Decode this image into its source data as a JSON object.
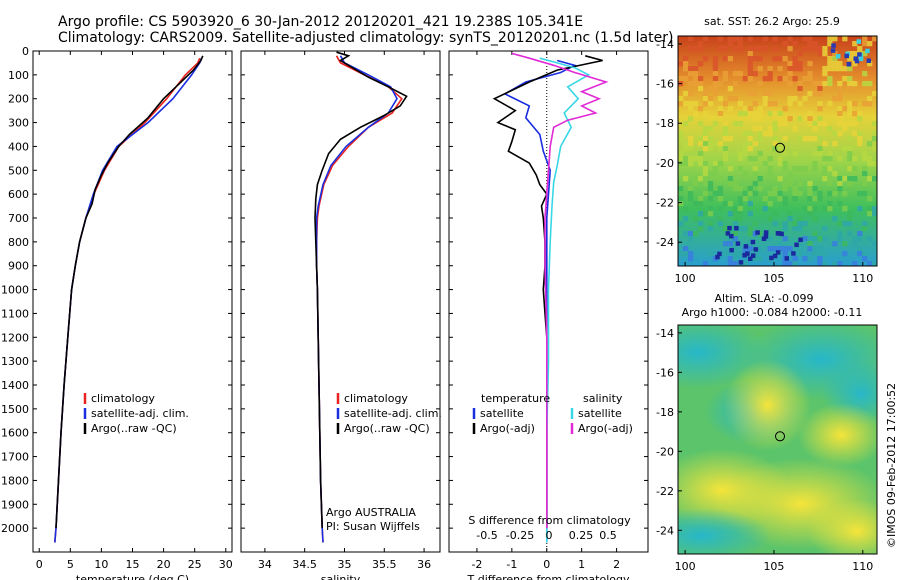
{
  "header": {
    "line1": "Argo profile: CS 5903920_6 30-Jan-2012 20120201_421 19.238S 105.341E",
    "line2": "Climatology: CARS2009. Satellite-adjusted climatology: synTS_20120201.nc (1.5d later)"
  },
  "credit": "©IMOS 09-Feb-2012 17:00:52",
  "colors": {
    "climatology": "#e8231f",
    "satellite": "#1a2ee0",
    "argo": "#000000",
    "sal_satellite": "#38d7e6",
    "sal_argo": "#e02ad6",
    "marker": "#000000"
  },
  "chart_data": [
    {
      "type": "line",
      "xlabel": "temperature (deg C)",
      "ylim": [
        2100,
        0
      ],
      "xlim": [
        -1,
        31
      ],
      "xticks": [
        0,
        5,
        10,
        15,
        20,
        25,
        30
      ],
      "yticks": [
        0,
        100,
        200,
        300,
        400,
        500,
        600,
        700,
        800,
        900,
        1000,
        1100,
        1200,
        1300,
        1400,
        1500,
        1600,
        1700,
        1800,
        1900,
        2000
      ],
      "legend": [
        "climatology",
        "satellite-adj. clim.",
        "Argo(..raw -QC)"
      ],
      "series": [
        {
          "name": "climatology",
          "color_key": "climatology",
          "points": [
            [
              25.8,
              30
            ],
            [
              25.5,
              50
            ],
            [
              23.5,
              100
            ],
            [
              20.5,
              200
            ],
            [
              17,
              300
            ],
            [
              12.8,
              400
            ],
            [
              10.5,
              500
            ],
            [
              8.8,
              600
            ],
            [
              7.5,
              700
            ],
            [
              6.5,
              800
            ],
            [
              5.8,
              900
            ],
            [
              5.2,
              1000
            ],
            [
              4.6,
              1200
            ],
            [
              4.0,
              1400
            ],
            [
              3.5,
              1600
            ],
            [
              3.1,
              1800
            ],
            [
              2.7,
              2000
            ],
            [
              2.5,
              2060
            ]
          ]
        },
        {
          "name": "satellite-adj. clim.",
          "color_key": "satellite",
          "points": [
            [
              26.1,
              30
            ],
            [
              25.8,
              50
            ],
            [
              24.5,
              100
            ],
            [
              21.5,
              200
            ],
            [
              17.5,
              300
            ],
            [
              12.5,
              400
            ],
            [
              10.2,
              500
            ],
            [
              8.7,
              600
            ],
            [
              7.5,
              700
            ],
            [
              6.5,
              800
            ],
            [
              5.8,
              900
            ],
            [
              5.2,
              1000
            ],
            [
              4.6,
              1200
            ],
            [
              4.0,
              1400
            ],
            [
              3.5,
              1600
            ],
            [
              3.1,
              1800
            ],
            [
              2.7,
              2000
            ],
            [
              2.5,
              2060
            ]
          ]
        },
        {
          "name": "Argo(..raw -QC)",
          "color_key": "argo",
          "points": [
            [
              26.3,
              20
            ],
            [
              26,
              40
            ],
            [
              24.8,
              80
            ],
            [
              22,
              150
            ],
            [
              20,
              200
            ],
            [
              17.5,
              280
            ],
            [
              14.5,
              350
            ],
            [
              12.8,
              400
            ],
            [
              11,
              470
            ],
            [
              10,
              520
            ],
            [
              9,
              580
            ],
            [
              8.5,
              640
            ],
            [
              7.5,
              700
            ],
            [
              6.5,
              800
            ],
            [
              5.8,
              900
            ],
            [
              5.2,
              1000
            ],
            [
              4.6,
              1200
            ],
            [
              4.0,
              1400
            ],
            [
              3.5,
              1600
            ],
            [
              3.1,
              1800
            ],
            [
              2.7,
              2000
            ]
          ]
        }
      ]
    },
    {
      "type": "line",
      "xlabel": "salinity",
      "ylim": [
        2100,
        0
      ],
      "xlim": [
        33.7,
        36.2
      ],
      "xticks": [
        34,
        34.5,
        35,
        35.5,
        36
      ],
      "legend": [
        "climatology",
        "satellite-adj. clim.",
        "Argo(..raw -QC)"
      ],
      "annotation": [
        "Argo AUSTRALIA",
        "PI: Susan Wijffels"
      ],
      "series": [
        {
          "name": "climatology",
          "color_key": "climatology",
          "points": [
            [
              34.9,
              20
            ],
            [
              34.95,
              50
            ],
            [
              35.25,
              100
            ],
            [
              35.55,
              150
            ],
            [
              35.72,
              200
            ],
            [
              35.6,
              260
            ],
            [
              35.3,
              320
            ],
            [
              35.05,
              400
            ],
            [
              34.85,
              480
            ],
            [
              34.74,
              560
            ],
            [
              34.68,
              650
            ],
            [
              34.66,
              700
            ],
            [
              34.65,
              800
            ],
            [
              34.65,
              900
            ],
            [
              34.66,
              1000
            ],
            [
              34.67,
              1200
            ],
            [
              34.68,
              1400
            ],
            [
              34.69,
              1600
            ],
            [
              34.7,
              1800
            ],
            [
              34.72,
              2000
            ],
            [
              34.73,
              2060
            ]
          ]
        },
        {
          "name": "satellite-adj. clim.",
          "color_key": "satellite",
          "points": [
            [
              34.95,
              20
            ],
            [
              35.0,
              50
            ],
            [
              35.3,
              100
            ],
            [
              35.58,
              150
            ],
            [
              35.66,
              200
            ],
            [
              35.55,
              260
            ],
            [
              35.3,
              320
            ],
            [
              35.02,
              400
            ],
            [
              34.83,
              480
            ],
            [
              34.73,
              560
            ],
            [
              34.67,
              650
            ],
            [
              34.65,
              700
            ],
            [
              34.65,
              800
            ],
            [
              34.65,
              900
            ],
            [
              34.66,
              1000
            ],
            [
              34.67,
              1200
            ],
            [
              34.68,
              1400
            ],
            [
              34.69,
              1600
            ],
            [
              34.7,
              1800
            ],
            [
              34.72,
              2000
            ],
            [
              34.73,
              2060
            ]
          ]
        },
        {
          "name": "Argo(..raw -QC)",
          "color_key": "argo",
          "points": [
            [
              34.9,
              5
            ],
            [
              35.05,
              20
            ],
            [
              34.95,
              40
            ],
            [
              35.1,
              70
            ],
            [
              35.3,
              110
            ],
            [
              35.55,
              150
            ],
            [
              35.78,
              190
            ],
            [
              35.7,
              230
            ],
            [
              35.5,
              270
            ],
            [
              35.2,
              320
            ],
            [
              34.95,
              370
            ],
            [
              34.8,
              430
            ],
            [
              34.72,
              500
            ],
            [
              34.66,
              560
            ],
            [
              34.64,
              620
            ],
            [
              34.63,
              700
            ],
            [
              34.64,
              800
            ],
            [
              34.65,
              900
            ],
            [
              34.66,
              1000
            ],
            [
              34.67,
              1200
            ],
            [
              34.68,
              1400
            ],
            [
              34.69,
              1600
            ],
            [
              34.7,
              1800
            ],
            [
              34.72,
              2000
            ]
          ]
        }
      ]
    },
    {
      "type": "line",
      "xlabel": "T difference from climatology",
      "ylim": [
        2100,
        0
      ],
      "xlim": [
        -2.8,
        2.9
      ],
      "xticks": [
        -2,
        -1,
        0,
        1,
        2
      ],
      "upper_axis_label": "S difference from climatology",
      "upper_ticks": [
        "-0.5",
        "-0.25",
        "0",
        "0.25",
        "0.5"
      ],
      "legend_groups": [
        {
          "title": "temperature",
          "items": [
            "satellite",
            "Argo(-adj)"
          ]
        },
        {
          "title": "salinity",
          "items": [
            "satellite",
            "Argo(-adj)"
          ]
        }
      ],
      "series": [
        {
          "name": "satellite",
          "group": "temperature",
          "color_key": "satellite",
          "points": [
            [
              0.3,
              40
            ],
            [
              0.8,
              60
            ],
            [
              0.4,
              90
            ],
            [
              -0.6,
              130
            ],
            [
              -1.2,
              180
            ],
            [
              -0.5,
              230
            ],
            [
              -0.6,
              280
            ],
            [
              -0.2,
              350
            ],
            [
              -0.1,
              420
            ],
            [
              0.1,
              500
            ],
            [
              0.05,
              600
            ],
            [
              0,
              700
            ],
            [
              0,
              900
            ],
            [
              0,
              1200
            ],
            [
              0,
              1500
            ],
            [
              0,
              1800
            ],
            [
              0,
              2060
            ]
          ]
        },
        {
          "name": "Argo(-adj)",
          "group": "temperature",
          "color_key": "argo",
          "points": [
            [
              1.1,
              20
            ],
            [
              1.6,
              40
            ],
            [
              0.3,
              80
            ],
            [
              -0.5,
              130
            ],
            [
              -1.5,
              200
            ],
            [
              -0.9,
              250
            ],
            [
              -1.4,
              300
            ],
            [
              -0.9,
              330
            ],
            [
              -1.0,
              380
            ],
            [
              -1.1,
              420
            ],
            [
              -0.5,
              470
            ],
            [
              -0.3,
              520
            ],
            [
              -0.2,
              560
            ],
            [
              0,
              600
            ],
            [
              -0.15,
              650
            ],
            [
              -0.1,
              700
            ],
            [
              -0.05,
              800
            ],
            [
              -0.05,
              900
            ],
            [
              -0.1,
              1000
            ],
            [
              -0.05,
              1100
            ],
            [
              0,
              1200
            ],
            [
              0,
              1400
            ],
            [
              0,
              1600
            ],
            [
              0,
              1800
            ],
            [
              0,
              2000
            ]
          ]
        },
        {
          "name": "satellite",
          "group": "salinity",
          "color_key": "sal_satellite",
          "points": [
            [
              -0.2,
              30
            ],
            [
              0.3,
              50
            ],
            [
              0.8,
              70
            ],
            [
              1.2,
              100
            ],
            [
              0.6,
              150
            ],
            [
              0.9,
              200
            ],
            [
              0.5,
              260
            ],
            [
              0.7,
              320
            ],
            [
              0.4,
              400
            ],
            [
              0.3,
              480
            ],
            [
              0.2,
              550
            ],
            [
              0.15,
              650
            ],
            [
              0.1,
              800
            ],
            [
              0.05,
              1000
            ],
            [
              0.05,
              1300
            ],
            [
              0,
              1600
            ],
            [
              0,
              1800
            ],
            [
              0,
              2060
            ]
          ]
        },
        {
          "name": "Argo(-adj)",
          "group": "salinity",
          "color_key": "sal_argo",
          "points": [
            [
              -1.0,
              10
            ],
            [
              -0.5,
              30
            ],
            [
              0.2,
              60
            ],
            [
              0.8,
              90
            ],
            [
              1.7,
              130
            ],
            [
              1.0,
              170
            ],
            [
              1.5,
              200
            ],
            [
              1.0,
              230
            ],
            [
              1.4,
              260
            ],
            [
              0.6,
              290
            ],
            [
              0.2,
              320
            ],
            [
              0.1,
              400
            ],
            [
              0.05,
              500
            ],
            [
              -0.05,
              700
            ],
            [
              -0.05,
              900
            ],
            [
              0,
              1200
            ],
            [
              0,
              1600
            ],
            [
              0,
              2000
            ]
          ]
        }
      ]
    },
    {
      "type": "heatmap",
      "title": "sat. SST: 26.2 Argo: 25.9",
      "xlim": [
        99.6,
        110.8
      ],
      "ylim": [
        -25.2,
        -13.6
      ],
      "xticks": [
        100,
        105,
        110
      ],
      "yticks": [
        -14,
        -16,
        -18,
        -20,
        -22,
        -24
      ],
      "marker": {
        "lon": 105.341,
        "lat": -19.238
      }
    },
    {
      "type": "heatmap",
      "title_lines": [
        "Altim. SLA: -0.099",
        "Argo h1000: -0.084 h2000: -0.11"
      ],
      "xlim": [
        99.6,
        110.8
      ],
      "ylim": [
        -25.2,
        -13.6
      ],
      "xticks": [
        100,
        105,
        110
      ],
      "yticks": [
        -14,
        -16,
        -18,
        -20,
        -22,
        -24
      ],
      "marker": {
        "lon": 105.341,
        "lat": -19.238
      }
    }
  ]
}
